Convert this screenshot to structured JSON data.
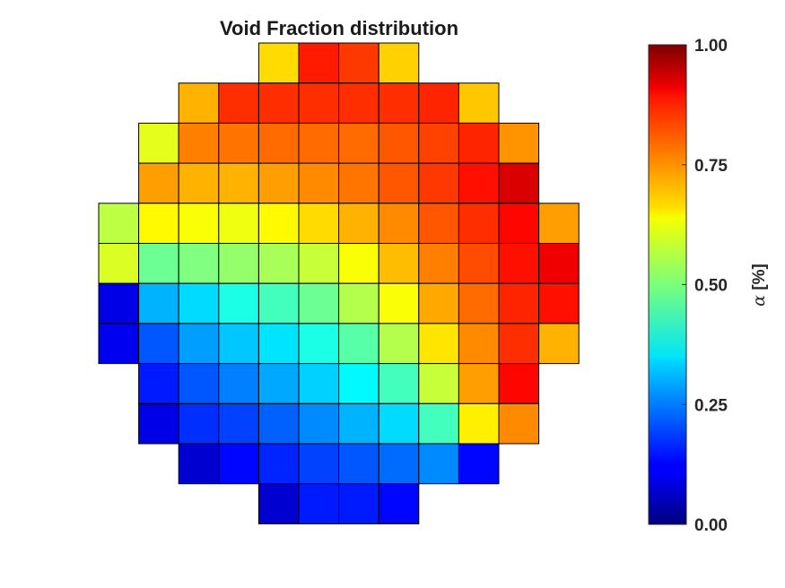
{
  "chart_data": {
    "type": "heatmap",
    "title": "Void Fraction distribution",
    "colorbar": {
      "label_symbol": "α",
      "label_unit": " [%]",
      "range": [
        0,
        1
      ],
      "ticks": [
        "0.00",
        "0.25",
        "0.50",
        "0.75",
        "1.00"
      ],
      "tick_values": [
        0,
        0.25,
        0.5,
        0.75,
        1.0
      ],
      "colormap": "jet"
    },
    "grid_columns": 12,
    "grid_rows": 12,
    "rows": [
      {
        "start_col": 4,
        "values": [
          0.66,
          0.85,
          0.82,
          0.67
        ]
      },
      {
        "start_col": 2,
        "values": [
          0.7,
          0.83,
          0.83,
          0.83,
          0.83,
          0.83,
          0.84,
          0.68
        ]
      },
      {
        "start_col": 1,
        "values": [
          0.6,
          0.75,
          0.76,
          0.77,
          0.77,
          0.77,
          0.79,
          0.81,
          0.84,
          0.73
        ]
      },
      {
        "start_col": 1,
        "values": [
          0.72,
          0.7,
          0.7,
          0.72,
          0.74,
          0.76,
          0.79,
          0.82,
          0.86,
          0.91
        ]
      },
      {
        "start_col": 0,
        "values": [
          0.56,
          0.63,
          0.62,
          0.61,
          0.63,
          0.66,
          0.7,
          0.74,
          0.79,
          0.83,
          0.87,
          0.72
        ]
      },
      {
        "start_col": 0,
        "values": [
          0.59,
          0.48,
          0.5,
          0.52,
          0.54,
          0.57,
          0.62,
          0.69,
          0.75,
          0.8,
          0.86,
          0.89
        ]
      },
      {
        "start_col": 0,
        "values": [
          0.1,
          0.3,
          0.34,
          0.4,
          0.44,
          0.48,
          0.55,
          0.62,
          0.71,
          0.77,
          0.84,
          0.86
        ]
      },
      {
        "start_col": 0,
        "values": [
          0.11,
          0.21,
          0.28,
          0.32,
          0.35,
          0.4,
          0.46,
          0.55,
          0.65,
          0.74,
          0.83,
          0.7
        ]
      },
      {
        "start_col": 1,
        "values": [
          0.15,
          0.21,
          0.25,
          0.29,
          0.33,
          0.37,
          0.44,
          0.57,
          0.72,
          0.87
        ]
      },
      {
        "start_col": 1,
        "values": [
          0.1,
          0.17,
          0.19,
          0.22,
          0.26,
          0.3,
          0.34,
          0.44,
          0.64,
          0.74
        ]
      },
      {
        "start_col": 2,
        "values": [
          0.08,
          0.13,
          0.16,
          0.19,
          0.21,
          0.23,
          0.26,
          0.13
        ]
      },
      {
        "start_col": 4,
        "values": [
          0.08,
          0.15,
          0.15,
          0.13
        ]
      }
    ]
  }
}
